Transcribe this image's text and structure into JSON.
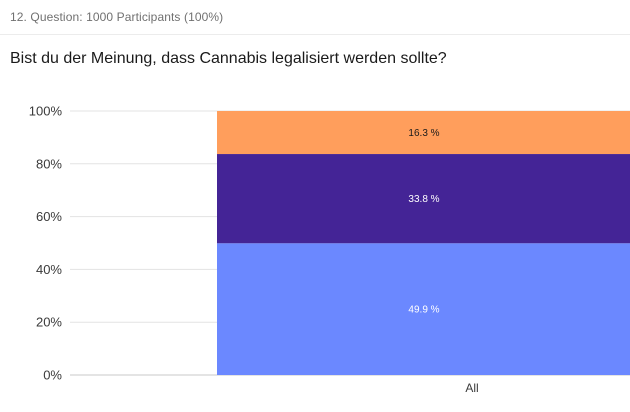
{
  "header": {
    "text": "12. Question: 1000 Participants (100%)"
  },
  "question": {
    "title": "Bist du der Meinung, dass Cannabis legalisiert werden sollte?"
  },
  "chart_data": {
    "type": "bar",
    "stacked": true,
    "normalized_percent": true,
    "categories": [
      "All"
    ],
    "ylim": [
      0,
      100
    ],
    "yticks": [
      "0%",
      "20%",
      "40%",
      "60%",
      "80%",
      "100%"
    ],
    "grid": true,
    "legend": "none",
    "series": [
      {
        "values": [
          49.9
        ],
        "label": "49.9 %",
        "color": "#6b88ff",
        "text_color": "#ffffff"
      },
      {
        "values": [
          33.8
        ],
        "label": "33.8 %",
        "color": "#442496",
        "text_color": "#ffffff"
      },
      {
        "values": [
          16.3
        ],
        "label": "16.3 %",
        "color": "#ff9e5c",
        "text_color": "#1a1a1a"
      }
    ]
  }
}
